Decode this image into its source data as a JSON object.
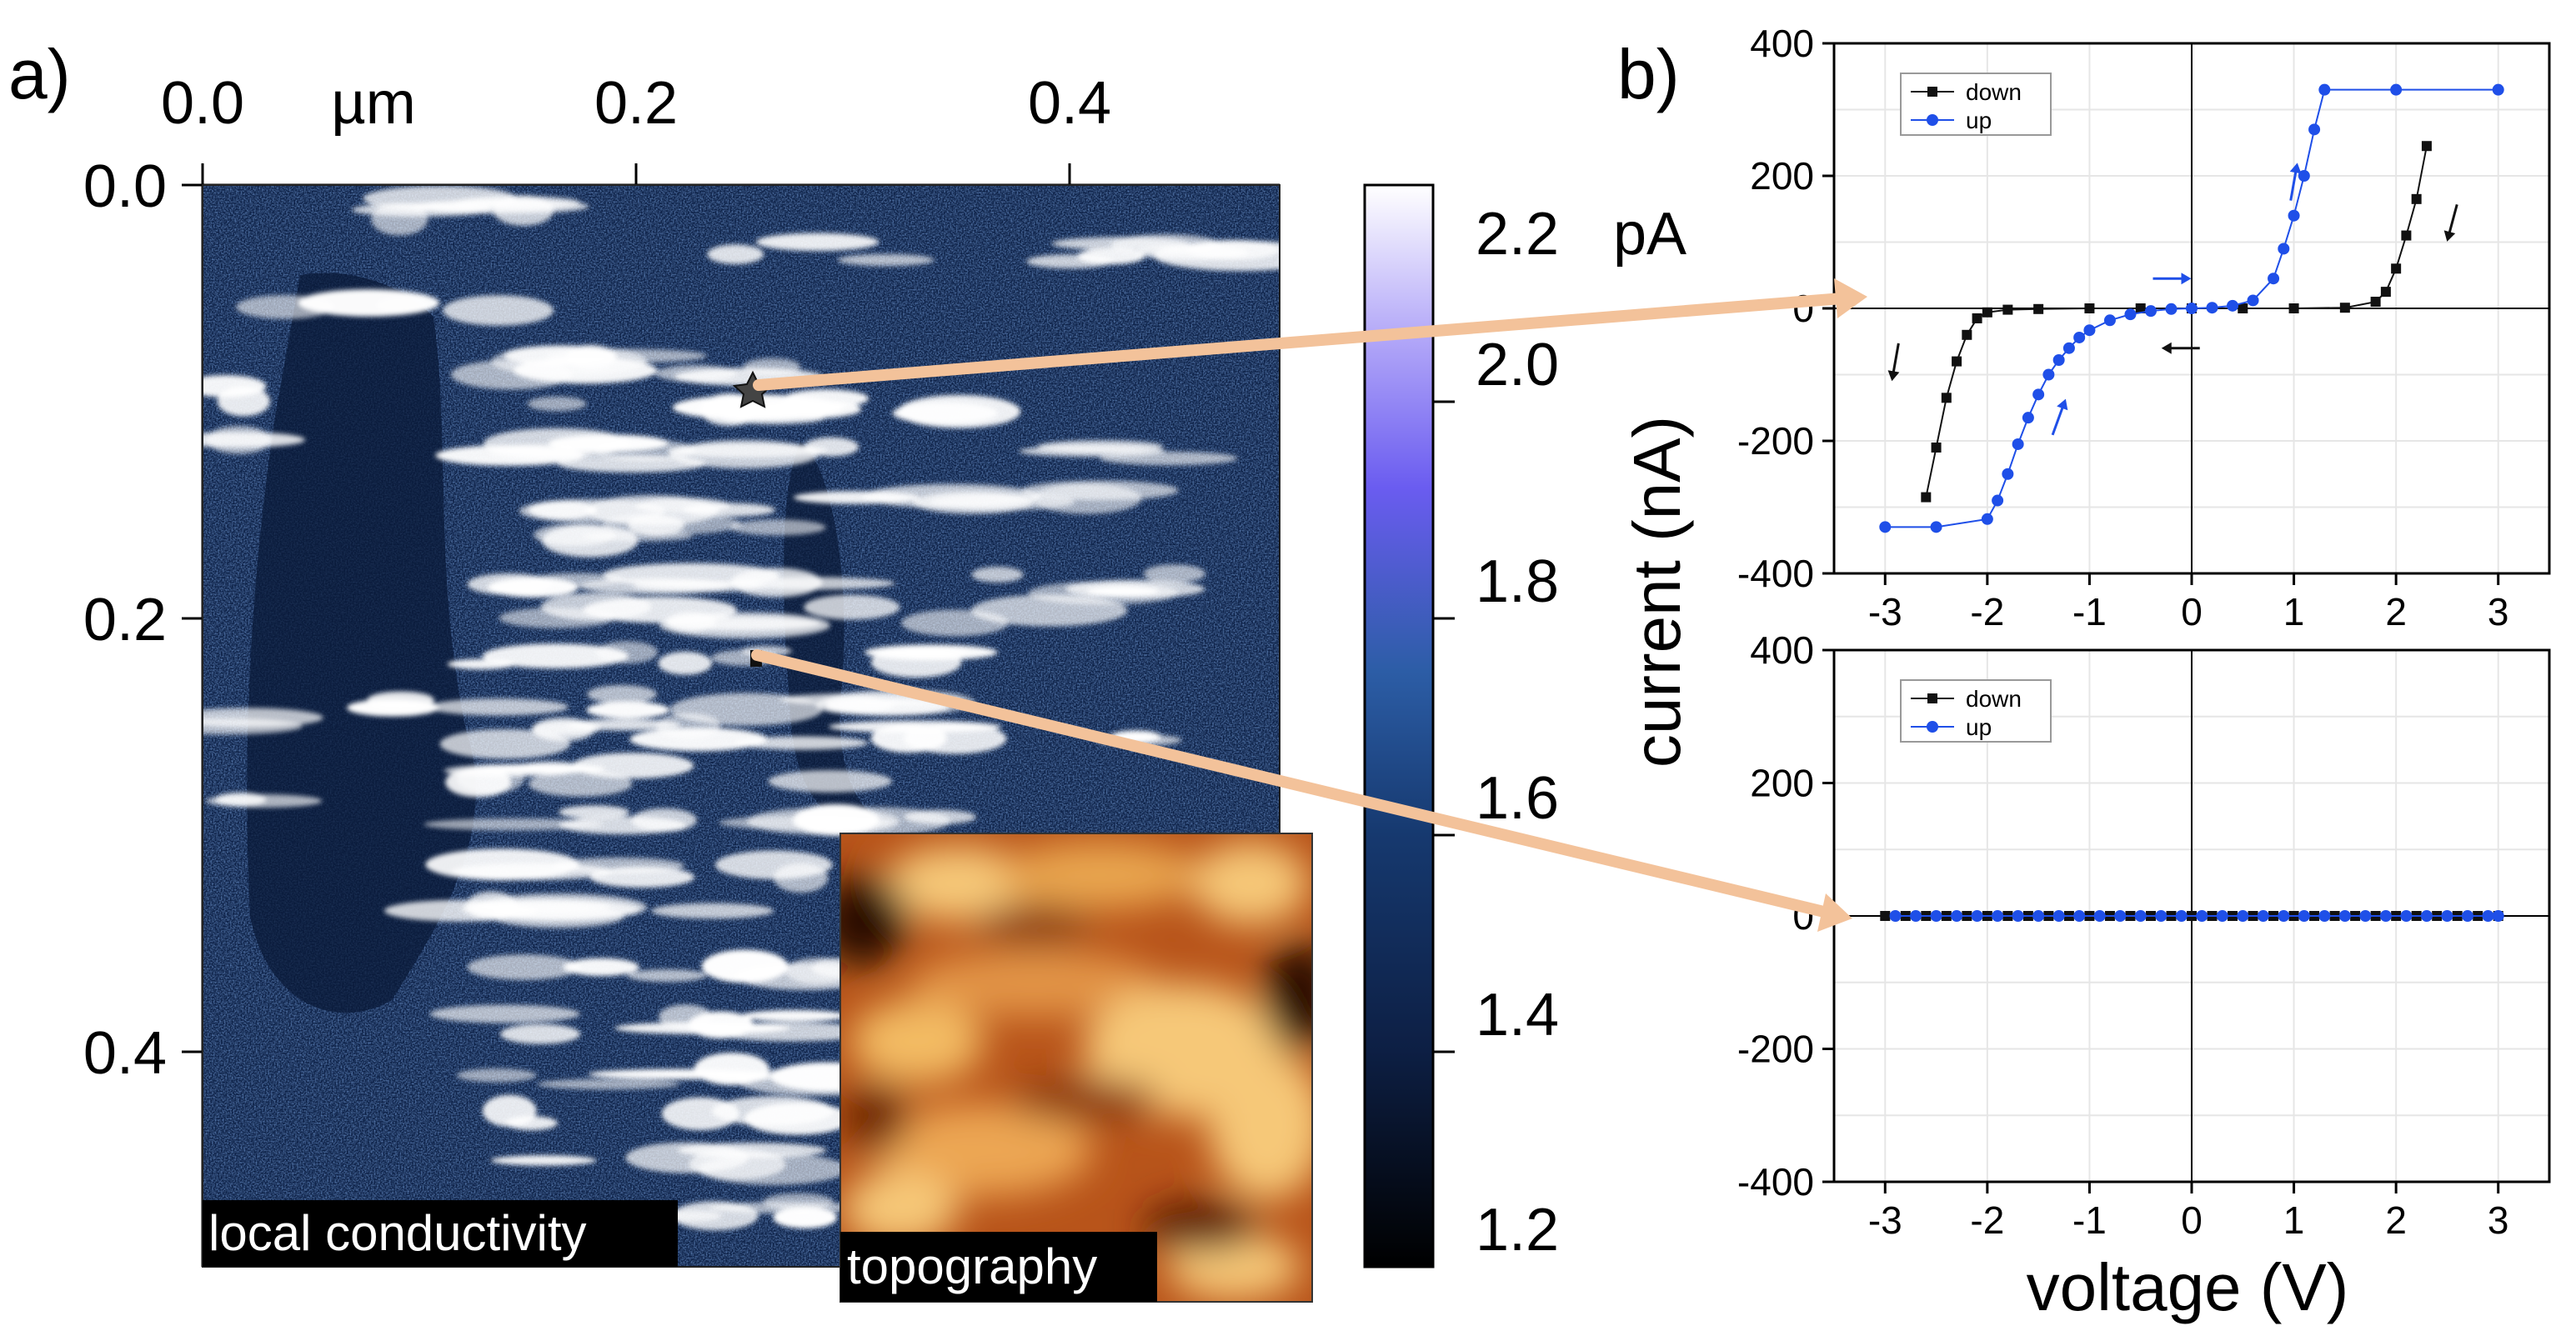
{
  "panel_a": {
    "label": "a)",
    "axis_unit": "µm",
    "x_ticks": [
      "0.0",
      "0.2",
      "0.4"
    ],
    "y_ticks": [
      "0.0",
      "0.2",
      "0.4"
    ],
    "map_label": "local conductivity",
    "inset_label": "topography",
    "colorbar": {
      "unit": "pA",
      "ticks": [
        "2.2",
        "2.0",
        "1.8",
        "1.6",
        "1.4",
        "1.2"
      ],
      "colors": [
        "#000000",
        "#0d1f44",
        "#16396f",
        "#2c5da6",
        "#6a5cf0",
        "#b3a8f8",
        "#ffffff"
      ]
    }
  },
  "panel_b": {
    "label": "b)",
    "ylabel": "current (nA)",
    "xlabel": "voltage (V)",
    "x_ticks": [
      "-3",
      "-2",
      "-1",
      "0",
      "1",
      "2",
      "3"
    ],
    "y_ticks": [
      "400",
      "200",
      "0",
      "-200",
      "-400"
    ]
  },
  "colors": {
    "map_base": "#0e2248",
    "map_bright": "#ffffff",
    "down": "#111111",
    "up": "#1f4fe8",
    "arrow": "#f3c29a",
    "topo_dark": "#2a0d00",
    "topo_mid": "#b8541a",
    "topo_light": "#f6c878"
  },
  "chart_data": [
    {
      "type": "line",
      "title": "",
      "xlabel": "voltage (V)",
      "ylabel": "current (nA)",
      "xlim": [
        -3.5,
        3.5
      ],
      "ylim": [
        -400,
        400
      ],
      "series": [
        {
          "name": "down",
          "x": [
            -2.6,
            -2.5,
            -2.4,
            -2.3,
            -2.2,
            -2.1,
            -2.0,
            -1.8,
            -1.5,
            -1.0,
            -0.5,
            0.0,
            0.5,
            1.0,
            1.5,
            1.8,
            1.9,
            2.0,
            2.1,
            2.2,
            2.3
          ],
          "y": [
            -285,
            -210,
            -135,
            -80,
            -40,
            -15,
            -6,
            -2,
            -1,
            0,
            0,
            0,
            0,
            0,
            1,
            10,
            25,
            60,
            110,
            165,
            245
          ]
        },
        {
          "name": "up",
          "x": [
            -3.0,
            -2.5,
            -2.0,
            -1.9,
            -1.8,
            -1.7,
            -1.6,
            -1.5,
            -1.4,
            -1.3,
            -1.2,
            -1.1,
            -1.0,
            -0.8,
            -0.6,
            -0.4,
            -0.2,
            0.0,
            0.2,
            0.4,
            0.6,
            0.8,
            0.9,
            1.0,
            1.1,
            1.2,
            1.3,
            2.0,
            3.0
          ],
          "y": [
            -330,
            -330,
            -318,
            -290,
            -250,
            -205,
            -165,
            -130,
            -100,
            -78,
            -60,
            -44,
            -33,
            -18,
            -9,
            -4,
            -1,
            0,
            1,
            4,
            12,
            45,
            90,
            140,
            200,
            270,
            330,
            330,
            330
          ]
        }
      ],
      "legend": "top-left"
    },
    {
      "type": "line",
      "title": "",
      "xlabel": "voltage (V)",
      "ylabel": "current (nA)",
      "xlim": [
        -3.5,
        3.5
      ],
      "ylim": [
        -400,
        400
      ],
      "series": [
        {
          "name": "down",
          "x": [
            -3.0,
            -2.8,
            -2.6,
            -2.4,
            -2.2,
            -2.0,
            -1.8,
            -1.6,
            -1.4,
            -1.2,
            -1.0,
            -0.8,
            -0.6,
            -0.4,
            -0.2,
            0.0,
            0.2,
            0.4,
            0.6,
            0.8,
            1.0,
            1.2,
            1.4,
            1.6,
            1.8,
            2.0,
            2.2,
            2.4,
            2.6,
            2.8,
            3.0
          ],
          "y": [
            0,
            0,
            0,
            0,
            0,
            0,
            0,
            0,
            0,
            0,
            0,
            0,
            0,
            0,
            0,
            0,
            0,
            0,
            0,
            0,
            0,
            0,
            0,
            0,
            0,
            0,
            0,
            0,
            0,
            0,
            0
          ]
        },
        {
          "name": "up",
          "x": [
            -2.9,
            -2.7,
            -2.5,
            -2.3,
            -2.1,
            -1.9,
            -1.7,
            -1.5,
            -1.3,
            -1.1,
            -0.9,
            -0.7,
            -0.5,
            -0.3,
            -0.1,
            0.1,
            0.3,
            0.5,
            0.7,
            0.9,
            1.1,
            1.3,
            1.5,
            1.7,
            1.9,
            2.1,
            2.3,
            2.5,
            2.7,
            2.9,
            3.0
          ],
          "y": [
            0,
            0,
            0,
            0,
            0,
            0,
            0,
            0,
            0,
            0,
            0,
            0,
            0,
            0,
            0,
            0,
            0,
            0,
            0,
            0,
            0,
            0,
            0,
            0,
            0,
            0,
            0,
            0,
            0,
            0,
            0
          ]
        }
      ],
      "legend": "top-left"
    }
  ]
}
